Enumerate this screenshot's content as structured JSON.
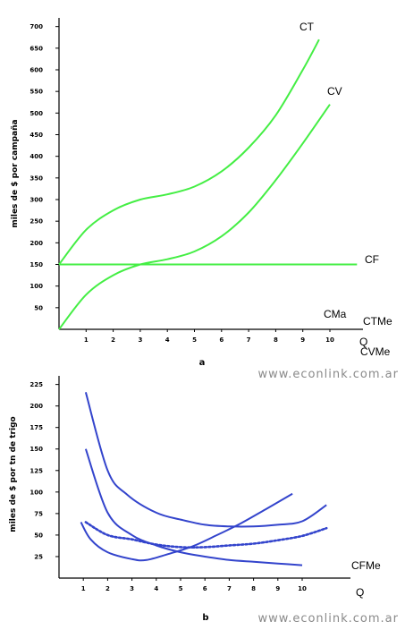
{
  "chart_data": [
    {
      "type": "line",
      "panel_label": "a",
      "credit": "www.econlink.com.ar",
      "xlabel": "Q",
      "ylabel": "miles de $ por campaña",
      "x_ticks": [
        1,
        2,
        3,
        4,
        5,
        6,
        7,
        8,
        9,
        10
      ],
      "y_ticks": [
        50,
        100,
        150,
        200,
        250,
        300,
        350,
        400,
        450,
        500,
        550,
        600,
        650,
        700
      ],
      "xlim": [
        0,
        11.2
      ],
      "ylim": [
        0,
        720
      ],
      "line_color": "#44ee44",
      "series": [
        {
          "name": "CT",
          "x": [
            0,
            1,
            2,
            3,
            4,
            5,
            6,
            7,
            8,
            9,
            9.6
          ],
          "y": [
            150,
            230,
            275,
            300,
            312,
            330,
            365,
            420,
            495,
            600,
            670
          ]
        },
        {
          "name": "CV",
          "x": [
            0,
            1,
            2,
            3,
            4,
            5,
            6,
            7,
            8,
            9,
            10
          ],
          "y": [
            0,
            80,
            125,
            150,
            162,
            180,
            215,
            270,
            345,
            430,
            520
          ]
        },
        {
          "name": "CF",
          "x": [
            0,
            11
          ],
          "y": [
            150,
            150
          ]
        }
      ]
    },
    {
      "type": "line",
      "panel_label": "b",
      "credit": "www.econlink.com.ar",
      "xlabel": "Q",
      "ylabel": "miles de $ por tn de trigo",
      "x_ticks": [
        1,
        2,
        3,
        4,
        5,
        6,
        7,
        8,
        9,
        10
      ],
      "y_ticks": [
        25,
        50,
        75,
        100,
        125,
        150,
        175,
        200,
        225
      ],
      "xlim": [
        0,
        11.2
      ],
      "ylim": [
        0,
        235
      ],
      "line_color": "#3344cc",
      "series": [
        {
          "name": "CMa",
          "style": "solid",
          "x": [
            0.9,
            1.3,
            2,
            3,
            3.6,
            4.5,
            5.5,
            6.5,
            7.5,
            8.5,
            9.6
          ],
          "y": [
            65,
            45,
            30,
            22,
            21,
            28,
            37,
            50,
            64,
            80,
            98
          ]
        },
        {
          "name": "CTMe",
          "style": "solid",
          "x": [
            1.1,
            2,
            2.8,
            4,
            5,
            6,
            7,
            8,
            9,
            10,
            11
          ],
          "y": [
            216,
            125,
            97,
            76,
            68,
            62,
            60,
            60,
            62,
            66,
            85
          ]
        },
        {
          "name": "CVMe",
          "style": "dotted",
          "x": [
            1.1,
            2,
            3,
            4,
            5,
            6,
            7,
            8,
            9,
            10,
            11
          ],
          "y": [
            65,
            50,
            45,
            39,
            36,
            36,
            38,
            40,
            44,
            49,
            58
          ]
        },
        {
          "name": "CFMe",
          "style": "solid",
          "x": [
            1.1,
            2,
            3,
            4,
            5,
            6,
            7,
            8,
            9,
            10
          ],
          "y": [
            150,
            76,
            50,
            38,
            30,
            25,
            21,
            19,
            17,
            15
          ]
        }
      ]
    }
  ]
}
